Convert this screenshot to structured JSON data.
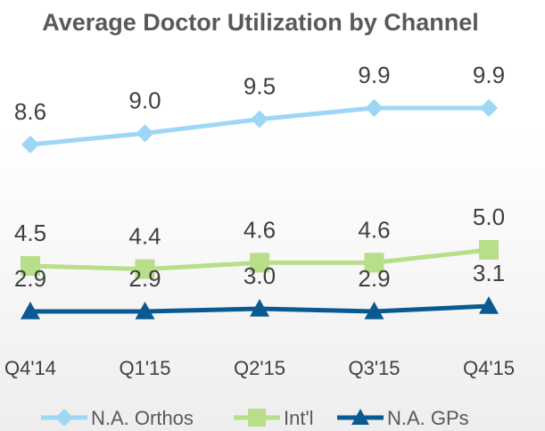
{
  "chart_data": {
    "type": "line",
    "title": "Average Doctor Utilization by Channel",
    "xlabel": "",
    "ylabel": "",
    "categories": [
      "Q4'14",
      "Q1'15",
      "Q2'15",
      "Q3'15",
      "Q4'15"
    ],
    "ylim": [
      0,
      12
    ],
    "grid": false,
    "legend_position": "bottom",
    "series": [
      {
        "name": "N.A. Orthos",
        "values": [
          8.6,
          9.0,
          9.5,
          9.9,
          9.9
        ],
        "labels": [
          "8.6",
          "9.0",
          "9.5",
          "9.9",
          "9.9"
        ],
        "color": "#9dd7f5",
        "marker": "diamond"
      },
      {
        "name": "Int'l",
        "values": [
          4.5,
          4.4,
          4.6,
          4.6,
          5.0
        ],
        "labels": [
          "4.5",
          "4.4",
          "4.6",
          "4.6",
          "5.0"
        ],
        "color": "#b8de8a",
        "marker": "square"
      },
      {
        "name": "N.A. GPs",
        "values": [
          2.9,
          2.9,
          3.0,
          2.9,
          3.1
        ],
        "labels": [
          "2.9",
          "2.9",
          "3.0",
          "2.9",
          "3.1"
        ],
        "color": "#0a5a91",
        "marker": "triangle"
      }
    ]
  }
}
